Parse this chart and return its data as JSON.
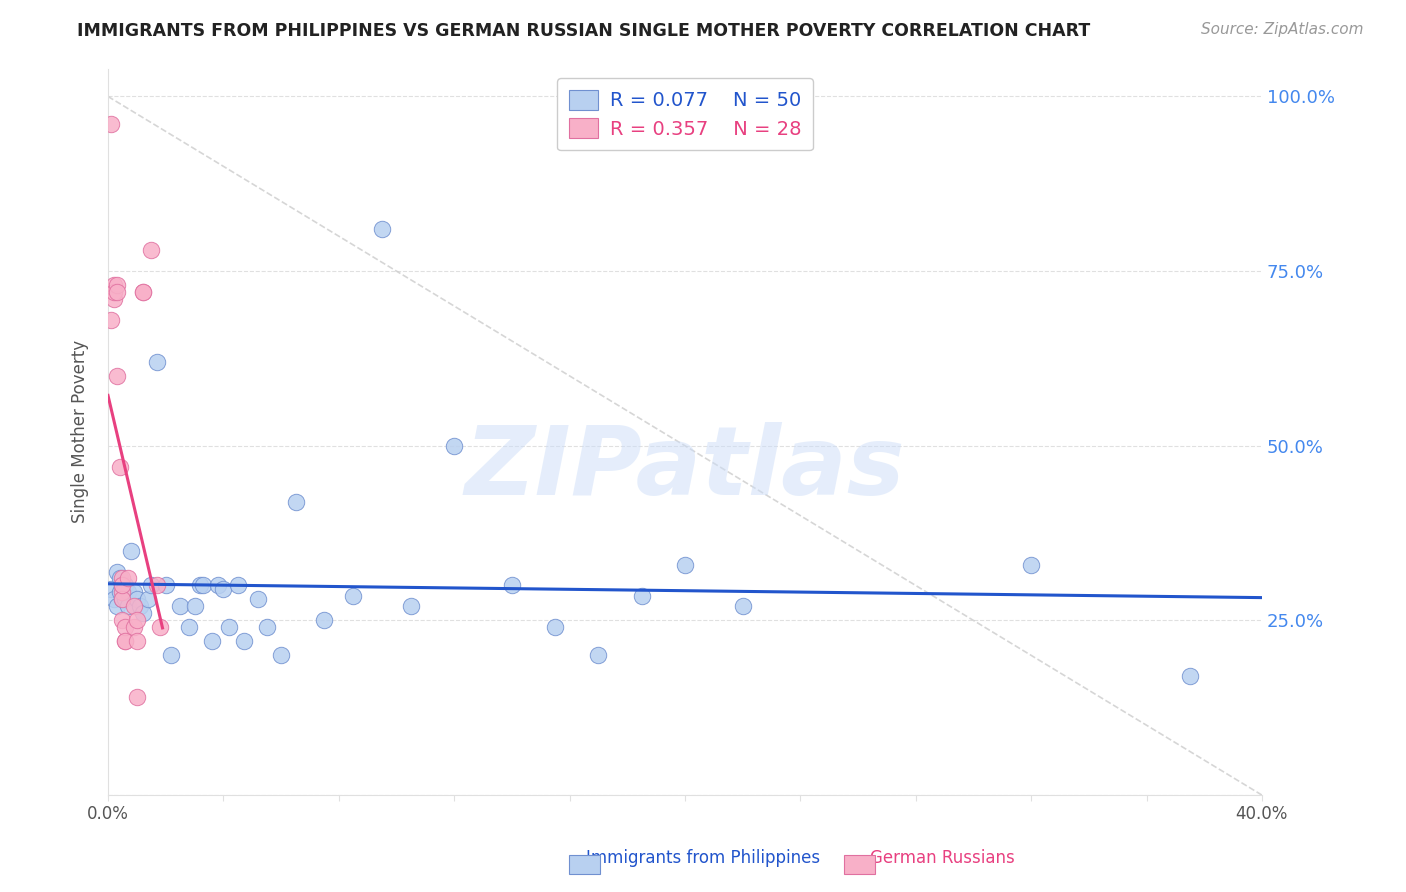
{
  "title": "IMMIGRANTS FROM PHILIPPINES VS GERMAN RUSSIAN SINGLE MOTHER POVERTY CORRELATION CHART",
  "source": "Source: ZipAtlas.com",
  "ylabel": "Single Mother Poverty",
  "series1_label": "Immigrants from Philippines",
  "series1_R": "0.077",
  "series1_N": "50",
  "series1_color": "#b8d0f0",
  "series1_edge_color": "#7090d0",
  "series1_line_color": "#2255cc",
  "series2_label": "German Russians",
  "series2_R": "0.357",
  "series2_N": "28",
  "series2_color": "#f8b0c8",
  "series2_edge_color": "#e070a0",
  "series2_line_color": "#e84080",
  "xlim": [
    0.0,
    0.4
  ],
  "ylim": [
    0.0,
    1.04
  ],
  "xticks": [
    0.0,
    0.04,
    0.08,
    0.12,
    0.16,
    0.2,
    0.24,
    0.28,
    0.32,
    0.36,
    0.4
  ],
  "yticks": [
    0.0,
    0.25,
    0.5,
    0.75,
    1.0
  ],
  "blue_points_x": [
    0.001,
    0.002,
    0.003,
    0.003,
    0.004,
    0.004,
    0.005,
    0.005,
    0.006,
    0.006,
    0.007,
    0.007,
    0.008,
    0.009,
    0.01,
    0.011,
    0.012,
    0.014,
    0.015,
    0.017,
    0.02,
    0.022,
    0.025,
    0.028,
    0.03,
    0.032,
    0.033,
    0.036,
    0.038,
    0.04,
    0.042,
    0.045,
    0.047,
    0.052,
    0.055,
    0.06,
    0.065,
    0.075,
    0.085,
    0.095,
    0.105,
    0.12,
    0.14,
    0.155,
    0.17,
    0.185,
    0.2,
    0.22,
    0.32,
    0.375
  ],
  "blue_points_y": [
    0.295,
    0.28,
    0.27,
    0.32,
    0.31,
    0.29,
    0.28,
    0.3,
    0.3,
    0.28,
    0.29,
    0.27,
    0.35,
    0.29,
    0.28,
    0.27,
    0.26,
    0.28,
    0.3,
    0.62,
    0.3,
    0.2,
    0.27,
    0.24,
    0.27,
    0.3,
    0.3,
    0.22,
    0.3,
    0.295,
    0.24,
    0.3,
    0.22,
    0.28,
    0.24,
    0.2,
    0.42,
    0.25,
    0.285,
    0.81,
    0.27,
    0.5,
    0.3,
    0.24,
    0.2,
    0.285,
    0.33,
    0.27,
    0.33,
    0.17
  ],
  "pink_points_x": [
    0.001,
    0.001,
    0.002,
    0.002,
    0.002,
    0.003,
    0.003,
    0.003,
    0.004,
    0.005,
    0.005,
    0.005,
    0.005,
    0.005,
    0.006,
    0.006,
    0.006,
    0.007,
    0.009,
    0.009,
    0.01,
    0.01,
    0.01,
    0.012,
    0.012,
    0.015,
    0.017,
    0.018
  ],
  "pink_points_y": [
    0.96,
    0.68,
    0.73,
    0.71,
    0.72,
    0.73,
    0.72,
    0.6,
    0.47,
    0.31,
    0.29,
    0.28,
    0.3,
    0.25,
    0.22,
    0.24,
    0.22,
    0.31,
    0.27,
    0.24,
    0.25,
    0.14,
    0.22,
    0.72,
    0.72,
    0.78,
    0.3,
    0.24
  ],
  "watermark_text": "ZIPatlas",
  "watermark_color": "#ccddf8",
  "watermark_alpha": 0.5,
  "background_color": "#ffffff",
  "grid_color": "#e0e0e0",
  "diag_line_color": "#cccccc",
  "right_yaxis_color": "#4488ee",
  "title_color": "#222222",
  "source_color": "#999999",
  "ylabel_color": "#555555",
  "xlabel_color": "#555555"
}
